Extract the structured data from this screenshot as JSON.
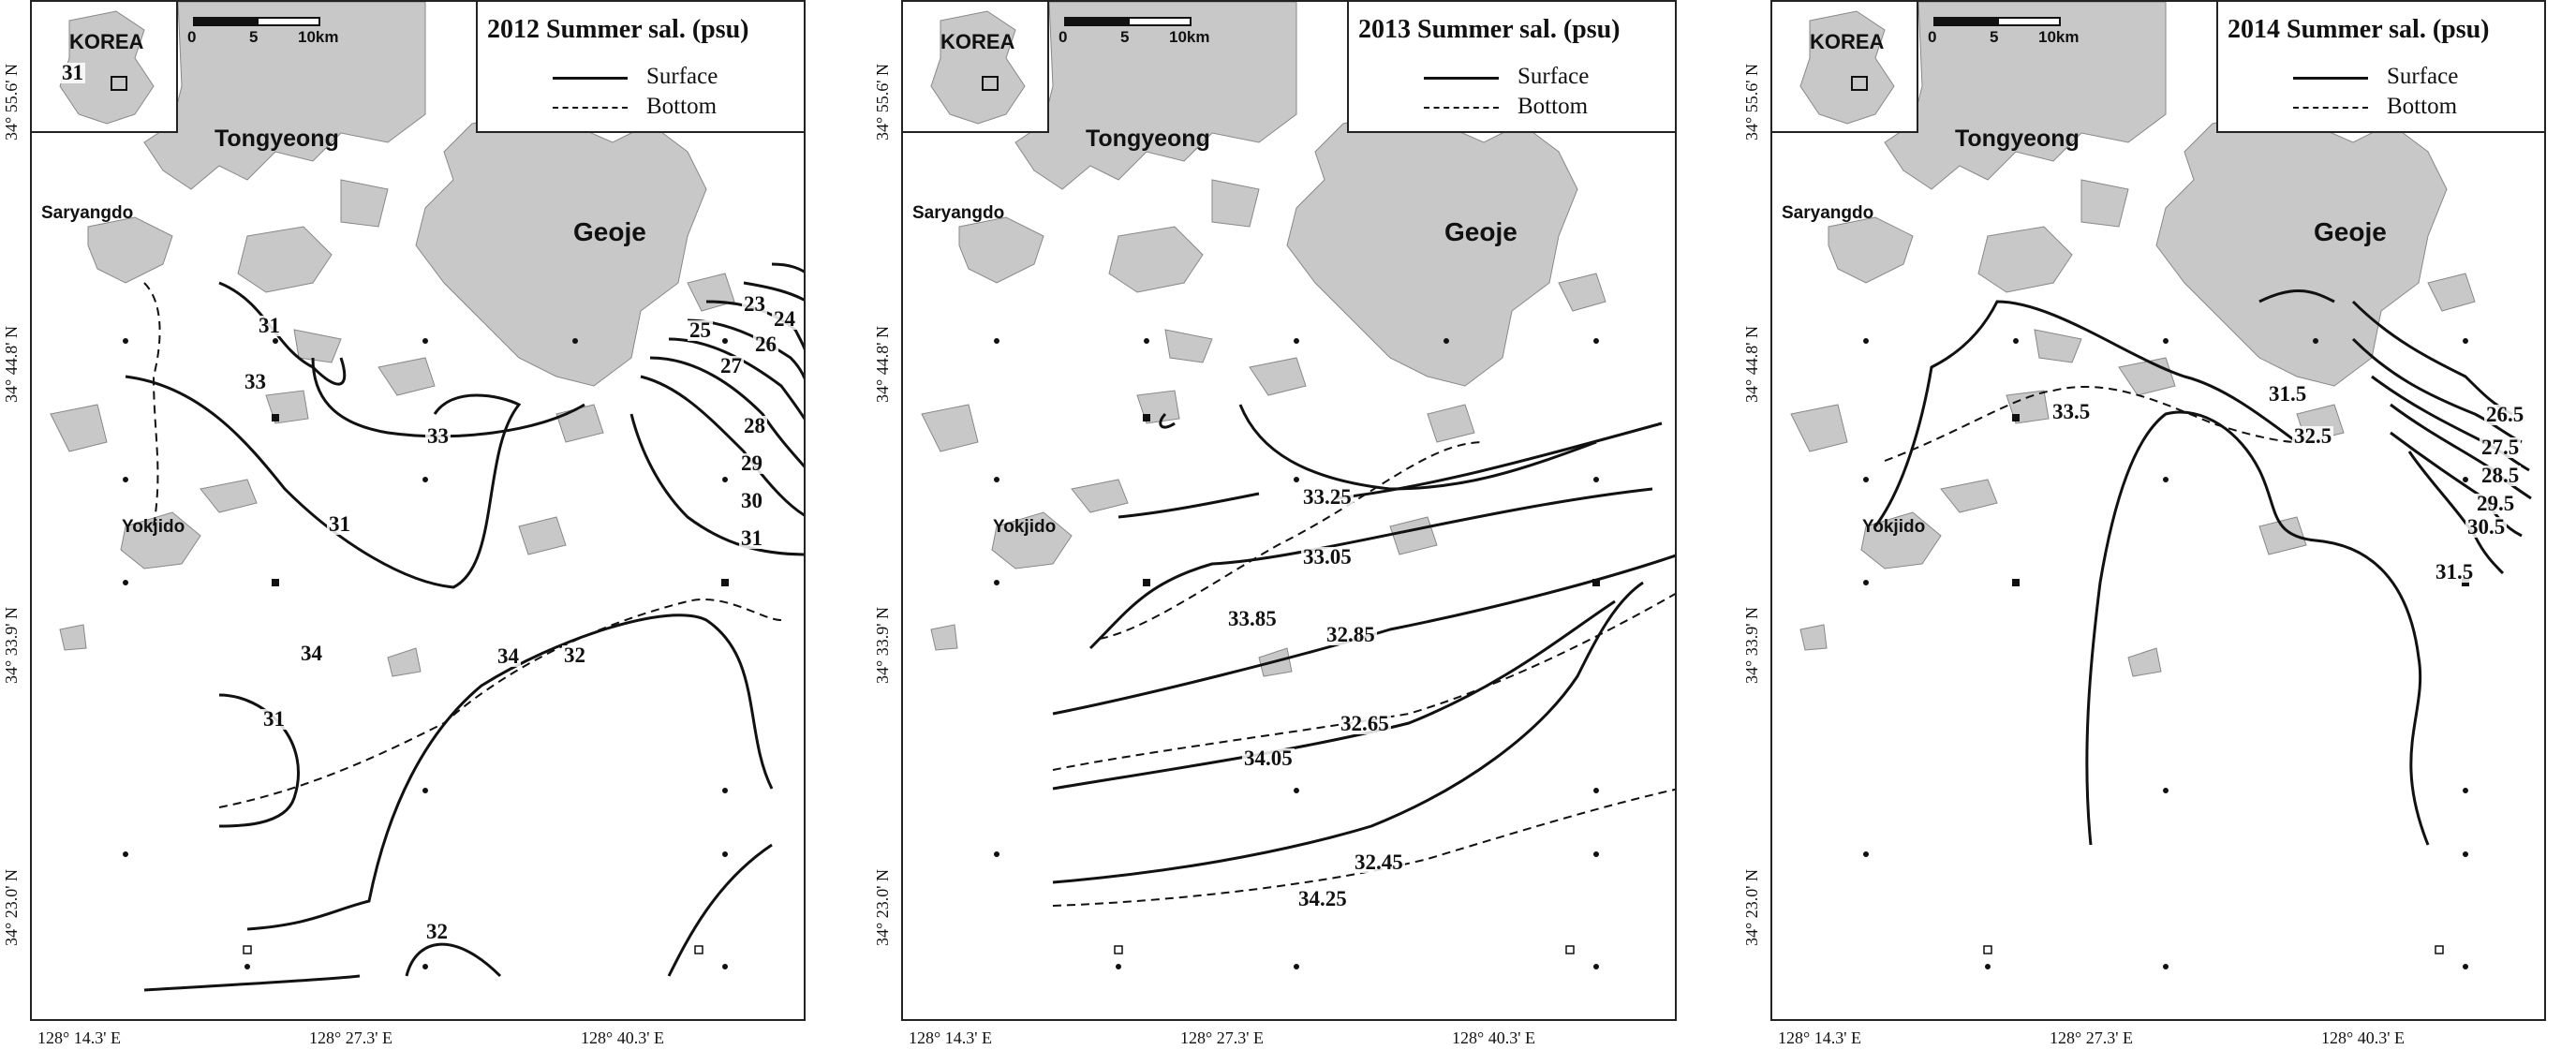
{
  "panels": [
    {
      "title": "2012 Summer sal. (psu)",
      "contour_labels": [
        "23",
        "24",
        "25",
        "26",
        "27",
        "28",
        "29",
        "30",
        "31",
        "31",
        "31",
        "33",
        "33",
        "31",
        "34",
        "32",
        "31",
        "32",
        "34"
      ]
    },
    {
      "title": "2013 Summer sal. (psu)",
      "contour_labels": [
        "33.25",
        "33.05",
        "33.85",
        "32.85",
        "34.05",
        "32.65",
        "32.45",
        "34.25"
      ]
    },
    {
      "title": "2014 Summer sal. (psu)",
      "contour_labels": [
        "31.5",
        "33.5",
        "32.5",
        "26.5",
        "27.5",
        "28.5",
        "29.5",
        "30.5",
        "31.5"
      ]
    }
  ],
  "legend": {
    "surface": "Surface",
    "bottom": "Bottom"
  },
  "inset": {
    "label": "KOREA"
  },
  "scalebar": {
    "t0": "0",
    "t1": "5",
    "t2": "10km"
  },
  "places": {
    "tongyeong": "Tongyeong",
    "geoje": "Geoje",
    "saryangdo": "Saryangdo",
    "yokjido": "Yokjido"
  },
  "axes": {
    "lat": [
      "34° 55.6' N",
      "34° 44.8' N",
      "34° 33.9' N",
      "34° 23.0' N"
    ],
    "lon": [
      "128° 14.3' E",
      "128° 27.3' E",
      "128° 40.3' E"
    ]
  }
}
